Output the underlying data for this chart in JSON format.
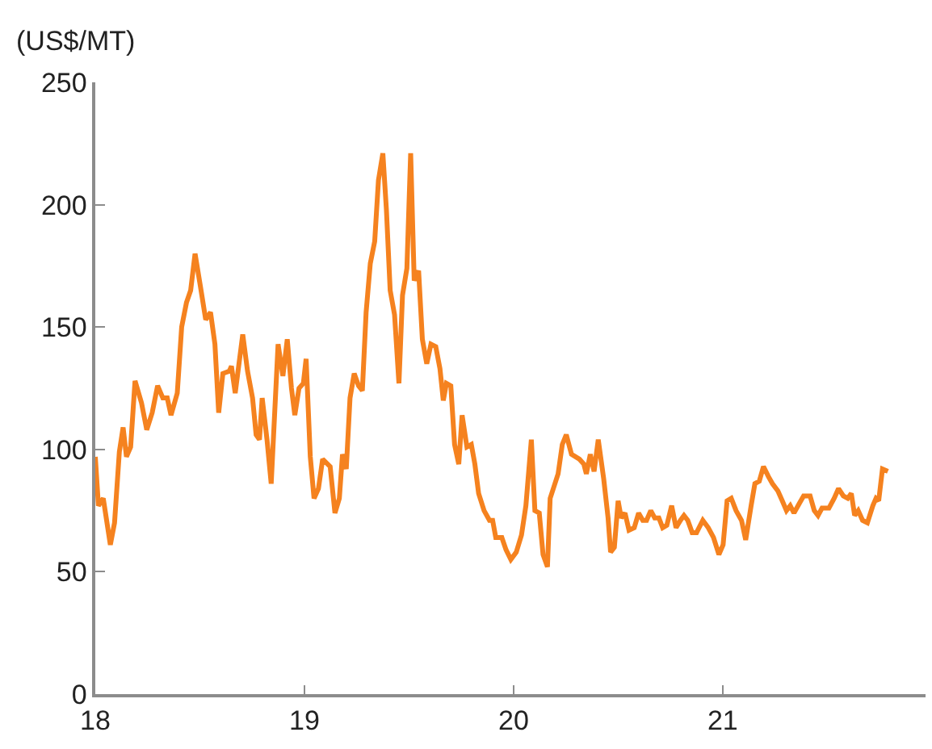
{
  "chart_data": {
    "type": "line",
    "ylabel": "(US$/MT)",
    "x": [
      18.0,
      18.015,
      18.038,
      18.072,
      18.092,
      18.115,
      18.133,
      18.149,
      18.169,
      18.19,
      18.221,
      18.246,
      18.272,
      18.298,
      18.323,
      18.344,
      18.362,
      18.392,
      18.413,
      18.436,
      18.456,
      18.477,
      18.502,
      18.528,
      18.551,
      18.572,
      18.59,
      18.61,
      18.641,
      18.651,
      18.669,
      18.705,
      18.728,
      18.752,
      18.769,
      18.785,
      18.798,
      18.821,
      18.841,
      18.874,
      18.897,
      18.918,
      18.938,
      18.954,
      18.974,
      18.995,
      19.008,
      19.028,
      19.046,
      19.067,
      19.087,
      19.123,
      19.146,
      19.167,
      19.182,
      19.2,
      19.218,
      19.238,
      19.259,
      19.277,
      19.295,
      19.315,
      19.336,
      19.354,
      19.375,
      19.392,
      19.41,
      19.431,
      19.452,
      19.469,
      19.49,
      19.508,
      19.525,
      19.546,
      19.564,
      19.585,
      19.605,
      19.628,
      19.648,
      19.664,
      19.679,
      19.7,
      19.718,
      19.738,
      19.754,
      19.777,
      19.798,
      19.815,
      19.833,
      19.859,
      19.885,
      19.9,
      19.915,
      19.944,
      19.964,
      19.987,
      20.013,
      20.038,
      20.059,
      20.085,
      20.102,
      20.123,
      20.141,
      20.162,
      20.175,
      20.213,
      20.233,
      20.252,
      20.277,
      20.315,
      20.336,
      20.348,
      20.367,
      20.385,
      20.405,
      20.431,
      20.452,
      20.464,
      20.482,
      20.5,
      20.515,
      20.533,
      20.552,
      20.577,
      20.598,
      20.618,
      20.636,
      20.656,
      20.675,
      20.695,
      20.713,
      20.733,
      20.756,
      20.777,
      20.798,
      20.815,
      20.833,
      20.854,
      20.875,
      20.905,
      20.931,
      20.956,
      20.982,
      21.002,
      21.021,
      21.041,
      21.064,
      21.09,
      21.11,
      21.136,
      21.154,
      21.175,
      21.195,
      21.218,
      21.238,
      21.264,
      21.285,
      21.305,
      21.323,
      21.341,
      21.367,
      21.387,
      21.418,
      21.438,
      21.456,
      21.475,
      21.508,
      21.533,
      21.554,
      21.577,
      21.598,
      21.615,
      21.631,
      21.648,
      21.669,
      21.692,
      21.718,
      21.733,
      21.746,
      21.764,
      21.79
    ],
    "series": [
      {
        "color": "#f5821f",
        "values": [
          97,
          77,
          80,
          61,
          70,
          99,
          109,
          97,
          101,
          128,
          119,
          108,
          115,
          126,
          121,
          121,
          114,
          123,
          150,
          160,
          165,
          180,
          167,
          153,
          156,
          143,
          115,
          131,
          132,
          134,
          123,
          147,
          132,
          121,
          106,
          104,
          121,
          104,
          86,
          143,
          130,
          145,
          125,
          114,
          125,
          127,
          137,
          97,
          80,
          84,
          96,
          93,
          74,
          80,
          98,
          92,
          121,
          131,
          126,
          124,
          156,
          176,
          185,
          210,
          221,
          198,
          165,
          155,
          127,
          163,
          174,
          221,
          169,
          173,
          145,
          135,
          143,
          142,
          133,
          120,
          127,
          126,
          102,
          94,
          114,
          101,
          102,
          94,
          82,
          75,
          71,
          71,
          64,
          64,
          59,
          55,
          58,
          65,
          77,
          104,
          75,
          74,
          57,
          52,
          80,
          90,
          102,
          106,
          98,
          96,
          94,
          90,
          98,
          91,
          104,
          88,
          72,
          58,
          60,
          79,
          72,
          74,
          67,
          68,
          74,
          71,
          71,
          75,
          72,
          72,
          68,
          69,
          77,
          68,
          71,
          73,
          71,
          66,
          66,
          71,
          68,
          64,
          57,
          61,
          79,
          80,
          75,
          71,
          63,
          77,
          86,
          87,
          93,
          89,
          86,
          83,
          79,
          75,
          77,
          74,
          78,
          81,
          81,
          75,
          73,
          76,
          76,
          80,
          84,
          81,
          80,
          82,
          73,
          75,
          71,
          70,
          77,
          80,
          79,
          92,
          91
        ]
      }
    ],
    "xlim": [
      18,
      21.97
    ],
    "xticks": [
      18,
      19,
      20,
      21
    ],
    "ylim": [
      0,
      250
    ],
    "yticks": [
      0,
      50,
      100,
      150,
      200,
      250
    ],
    "marker": "none",
    "line_style": "solid"
  }
}
